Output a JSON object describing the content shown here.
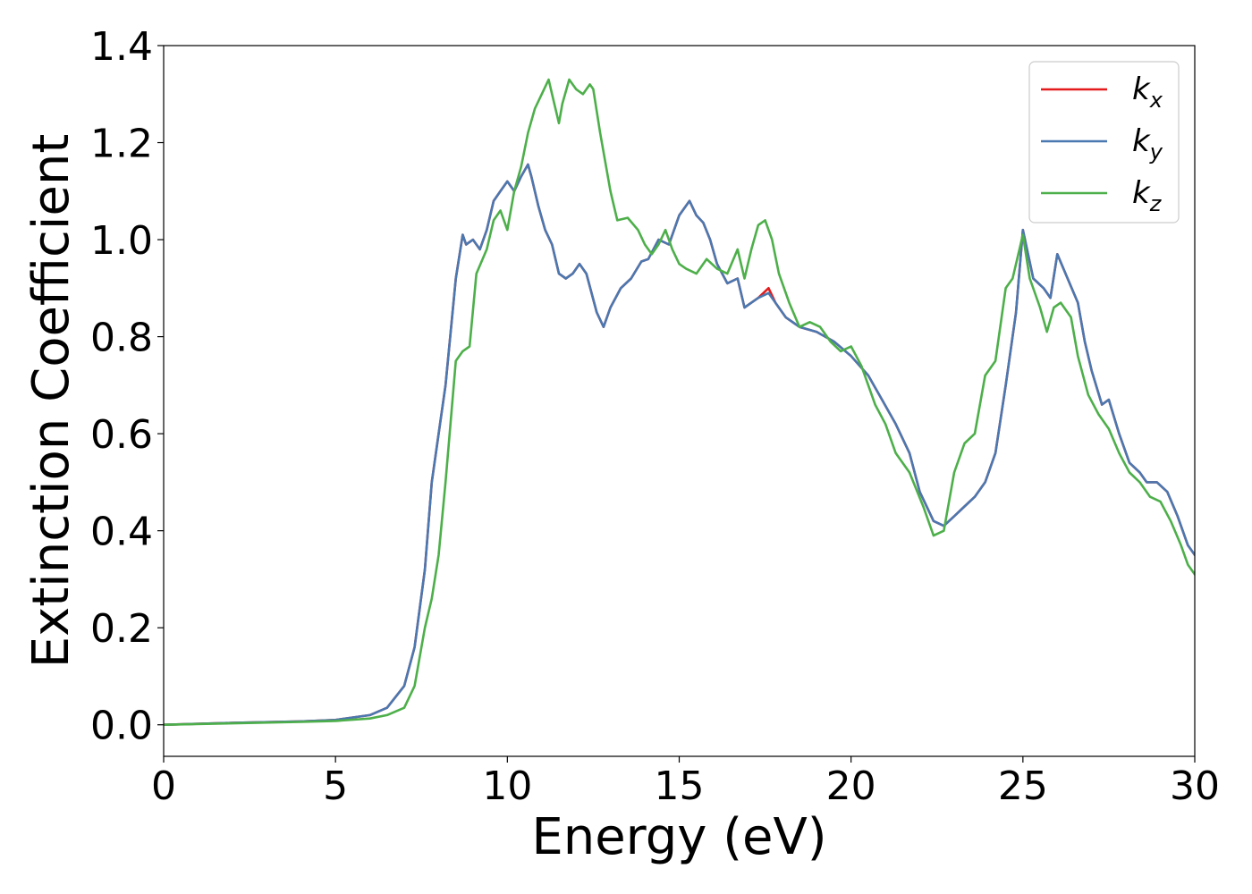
{
  "chart_data": {
    "type": "line",
    "title": "",
    "xlabel": "Energy (eV)",
    "ylabel": "Extinction Coefficient",
    "xlim": [
      0,
      30
    ],
    "ylim": [
      -0.065,
      1.4
    ],
    "xticks": [
      0,
      5,
      10,
      15,
      20,
      25,
      30
    ],
    "xtick_labels": [
      "0",
      "5",
      "10",
      "15",
      "20",
      "25",
      "30"
    ],
    "yticks": [
      0.0,
      0.2,
      0.4,
      0.6,
      0.8,
      1.0,
      1.2,
      1.4
    ],
    "ytick_labels": [
      "0.0",
      "0.2",
      "0.4",
      "0.6",
      "0.8",
      "1.0",
      "1.2",
      "1.4"
    ],
    "grid": false,
    "legend_position": "top-right",
    "series": [
      {
        "name": "k_x",
        "label_base": "k",
        "label_sub": "x",
        "color": "#e41a1c",
        "x": [
          0,
          2,
          4,
          5,
          6,
          6.5,
          7,
          7.3,
          7.6,
          7.8,
          8.0,
          8.2,
          8.5,
          8.7,
          8.8,
          9.0,
          9.2,
          9.4,
          9.6,
          9.8,
          10.0,
          10.2,
          10.4,
          10.6,
          10.7,
          10.9,
          11.1,
          11.3,
          11.5,
          11.7,
          11.9,
          12.1,
          12.3,
          12.6,
          12.8,
          13.0,
          13.3,
          13.6,
          13.9,
          14.1,
          14.4,
          14.7,
          15.0,
          15.3,
          15.5,
          15.7,
          15.9,
          16.1,
          16.4,
          16.7,
          16.9,
          17.1,
          17.3,
          17.6,
          17.8,
          18.1,
          18.5,
          19.0,
          19.5,
          20.0,
          20.5,
          20.9,
          21.3,
          21.7,
          22.0,
          22.4,
          22.7,
          23.0,
          23.3,
          23.6,
          23.9,
          24.2,
          24.5,
          24.8,
          25.0,
          25.3,
          25.6,
          25.8,
          26.0,
          26.3,
          26.6,
          26.8,
          27.0,
          27.3,
          27.5,
          27.8,
          28.1,
          28.4,
          28.6,
          28.9,
          29.2,
          29.5,
          29.8,
          30.0
        ],
        "values": [
          0.0,
          0.004,
          0.007,
          0.01,
          0.02,
          0.035,
          0.08,
          0.16,
          0.32,
          0.5,
          0.6,
          0.7,
          0.92,
          1.01,
          0.99,
          1.0,
          0.98,
          1.02,
          1.08,
          1.1,
          1.12,
          1.1,
          1.13,
          1.155,
          1.13,
          1.07,
          1.02,
          0.99,
          0.93,
          0.92,
          0.93,
          0.95,
          0.93,
          0.85,
          0.82,
          0.86,
          0.9,
          0.92,
          0.955,
          0.96,
          1.0,
          0.99,
          1.05,
          1.08,
          1.05,
          1.035,
          1.0,
          0.95,
          0.91,
          0.92,
          0.86,
          0.87,
          0.88,
          0.9,
          0.87,
          0.84,
          0.82,
          0.81,
          0.79,
          0.76,
          0.72,
          0.67,
          0.62,
          0.56,
          0.48,
          0.42,
          0.41,
          0.43,
          0.45,
          0.47,
          0.5,
          0.56,
          0.7,
          0.85,
          1.02,
          0.92,
          0.9,
          0.88,
          0.97,
          0.92,
          0.87,
          0.79,
          0.73,
          0.66,
          0.67,
          0.6,
          0.54,
          0.52,
          0.5,
          0.5,
          0.48,
          0.43,
          0.37,
          0.35
        ]
      },
      {
        "name": "k_y",
        "label_base": "k",
        "label_sub": "y",
        "color": "#4a78b0",
        "x": [
          0,
          2,
          4,
          5,
          6,
          6.5,
          7,
          7.3,
          7.6,
          7.8,
          8.0,
          8.2,
          8.5,
          8.7,
          8.8,
          9.0,
          9.2,
          9.4,
          9.6,
          9.8,
          10.0,
          10.2,
          10.4,
          10.6,
          10.7,
          10.9,
          11.1,
          11.3,
          11.5,
          11.7,
          11.9,
          12.1,
          12.3,
          12.6,
          12.8,
          13.0,
          13.3,
          13.6,
          13.9,
          14.1,
          14.4,
          14.7,
          15.0,
          15.3,
          15.5,
          15.7,
          15.9,
          16.1,
          16.4,
          16.7,
          16.9,
          17.1,
          17.3,
          17.6,
          17.8,
          18.1,
          18.5,
          19.0,
          19.5,
          20.0,
          20.5,
          20.9,
          21.3,
          21.7,
          22.0,
          22.4,
          22.7,
          23.0,
          23.3,
          23.6,
          23.9,
          24.2,
          24.5,
          24.8,
          25.0,
          25.3,
          25.6,
          25.8,
          26.0,
          26.3,
          26.6,
          26.8,
          27.0,
          27.3,
          27.5,
          27.8,
          28.1,
          28.4,
          28.6,
          28.9,
          29.2,
          29.5,
          29.8,
          30.0
        ],
        "values": [
          0.0,
          0.004,
          0.007,
          0.01,
          0.02,
          0.035,
          0.08,
          0.16,
          0.32,
          0.5,
          0.6,
          0.7,
          0.92,
          1.01,
          0.99,
          1.0,
          0.98,
          1.02,
          1.08,
          1.1,
          1.12,
          1.1,
          1.13,
          1.155,
          1.13,
          1.07,
          1.02,
          0.99,
          0.93,
          0.92,
          0.93,
          0.95,
          0.93,
          0.85,
          0.82,
          0.86,
          0.9,
          0.92,
          0.955,
          0.96,
          1.0,
          0.99,
          1.05,
          1.08,
          1.05,
          1.035,
          1.0,
          0.95,
          0.91,
          0.92,
          0.86,
          0.87,
          0.88,
          0.89,
          0.87,
          0.84,
          0.82,
          0.81,
          0.79,
          0.76,
          0.72,
          0.67,
          0.62,
          0.56,
          0.48,
          0.42,
          0.41,
          0.43,
          0.45,
          0.47,
          0.5,
          0.56,
          0.7,
          0.85,
          1.02,
          0.92,
          0.9,
          0.88,
          0.97,
          0.92,
          0.87,
          0.79,
          0.73,
          0.66,
          0.67,
          0.6,
          0.54,
          0.52,
          0.5,
          0.5,
          0.48,
          0.43,
          0.37,
          0.35
        ]
      },
      {
        "name": "k_z",
        "label_base": "k",
        "label_sub": "z",
        "color": "#4daf4a",
        "x": [
          0,
          2,
          4,
          5,
          6,
          6.5,
          7,
          7.3,
          7.6,
          7.8,
          8.0,
          8.2,
          8.5,
          8.7,
          8.9,
          9.1,
          9.4,
          9.6,
          9.8,
          10.0,
          10.2,
          10.4,
          10.6,
          10.8,
          11.0,
          11.2,
          11.3,
          11.5,
          11.6,
          11.8,
          12.0,
          12.2,
          12.4,
          12.5,
          12.7,
          13.0,
          13.2,
          13.5,
          13.8,
          14.0,
          14.2,
          14.4,
          14.6,
          14.8,
          15.0,
          15.2,
          15.5,
          15.8,
          16.1,
          16.4,
          16.7,
          16.9,
          17.1,
          17.3,
          17.5,
          17.7,
          17.9,
          18.2,
          18.5,
          18.8,
          19.1,
          19.4,
          19.7,
          20.0,
          20.3,
          20.7,
          21.0,
          21.3,
          21.7,
          22.1,
          22.4,
          22.7,
          23.0,
          23.3,
          23.6,
          23.9,
          24.2,
          24.5,
          24.7,
          25.0,
          25.2,
          25.5,
          25.7,
          25.9,
          26.1,
          26.4,
          26.6,
          26.9,
          27.2,
          27.5,
          27.8,
          28.1,
          28.4,
          28.7,
          29.0,
          29.3,
          29.6,
          29.8,
          30.0
        ],
        "values": [
          0.0,
          0.003,
          0.006,
          0.008,
          0.013,
          0.02,
          0.035,
          0.08,
          0.2,
          0.26,
          0.35,
          0.5,
          0.75,
          0.77,
          0.78,
          0.93,
          0.98,
          1.04,
          1.06,
          1.02,
          1.1,
          1.15,
          1.22,
          1.27,
          1.3,
          1.33,
          1.3,
          1.24,
          1.28,
          1.33,
          1.31,
          1.3,
          1.32,
          1.31,
          1.22,
          1.1,
          1.04,
          1.045,
          1.02,
          0.99,
          0.97,
          0.99,
          1.02,
          0.98,
          0.95,
          0.94,
          0.93,
          0.96,
          0.94,
          0.93,
          0.98,
          0.92,
          0.98,
          1.03,
          1.04,
          1.0,
          0.93,
          0.87,
          0.82,
          0.83,
          0.82,
          0.79,
          0.77,
          0.78,
          0.74,
          0.66,
          0.62,
          0.56,
          0.52,
          0.45,
          0.39,
          0.4,
          0.52,
          0.58,
          0.6,
          0.72,
          0.75,
          0.9,
          0.92,
          1.01,
          0.92,
          0.86,
          0.81,
          0.86,
          0.87,
          0.84,
          0.76,
          0.68,
          0.64,
          0.61,
          0.56,
          0.52,
          0.5,
          0.47,
          0.46,
          0.42,
          0.37,
          0.33,
          0.31
        ]
      }
    ]
  }
}
